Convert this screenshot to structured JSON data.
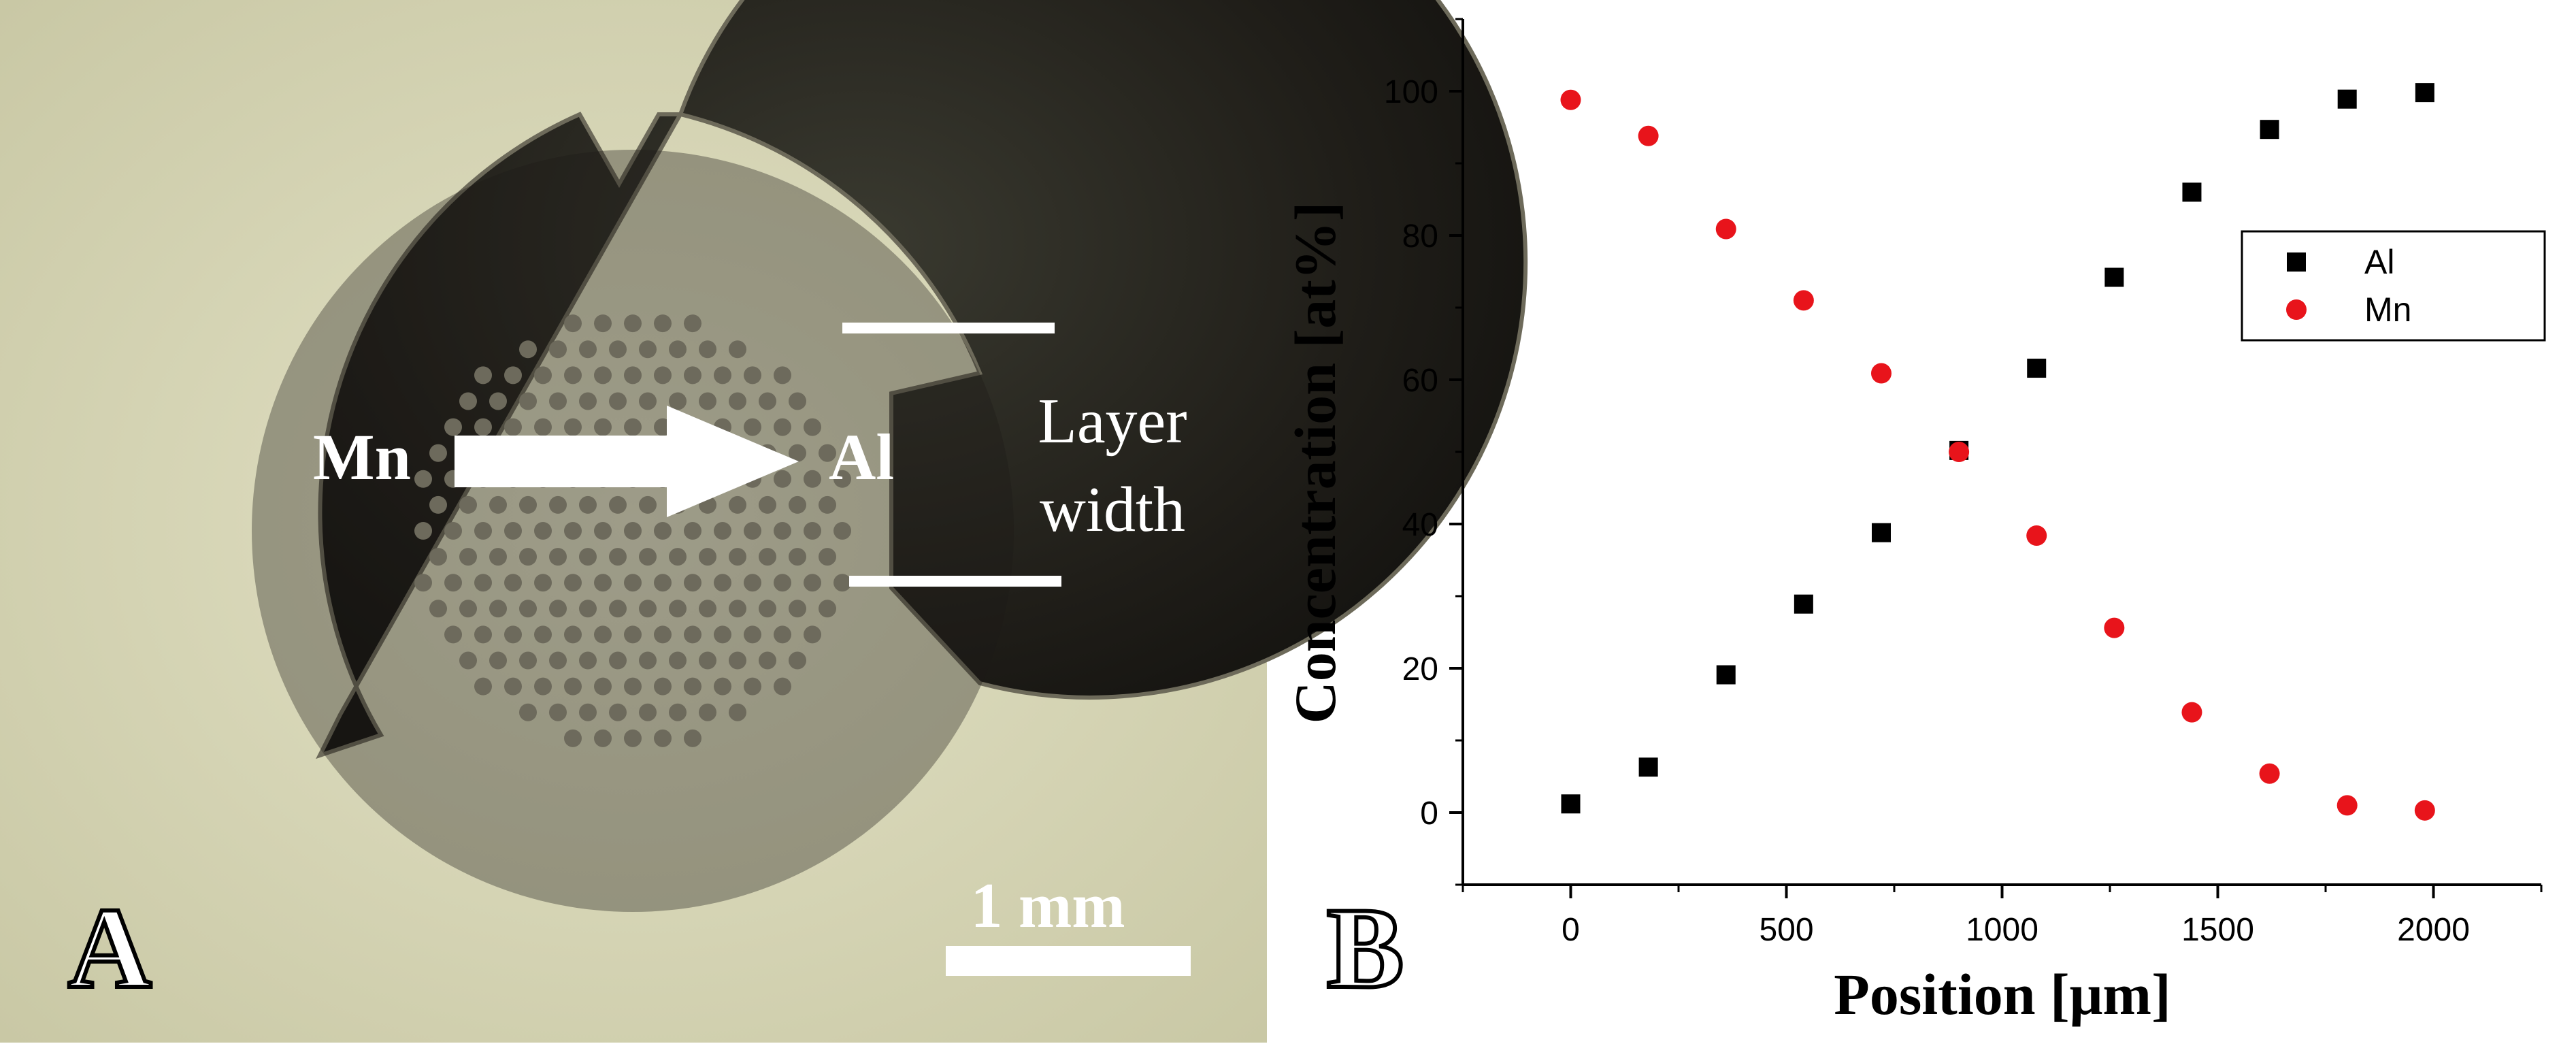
{
  "panel_a": {
    "letter": "A",
    "start_label": "Mn",
    "end_label": "Al",
    "width_label_line1": "Layer",
    "width_label_line2": "width",
    "scale_label": "1 mm"
  },
  "panel_b": {
    "letter": "B"
  },
  "chart_data": {
    "type": "scatter",
    "xlabel": "Position [μm]",
    "ylabel": "Concentration [at%]",
    "xlim": [
      -250,
      2250
    ],
    "ylim": [
      -10,
      110
    ],
    "xticks": [
      0,
      500,
      1000,
      1500,
      2000
    ],
    "yticks": [
      0,
      20,
      40,
      60,
      80,
      100
    ],
    "grid": false,
    "legend_position": "top-right",
    "series": [
      {
        "name": "Al",
        "marker": "square",
        "color": "#000000",
        "x": [
          0,
          180,
          360,
          540,
          720,
          900,
          1080,
          1260,
          1440,
          1620,
          1800,
          1980
        ],
        "y": [
          1.2,
          6.3,
          19.1,
          28.9,
          38.8,
          50.2,
          61.6,
          74.2,
          86.0,
          94.7,
          98.9,
          99.8
        ]
      },
      {
        "name": "Mn",
        "marker": "circle",
        "color": "#e8141b",
        "x": [
          0,
          180,
          360,
          540,
          720,
          900,
          1080,
          1260,
          1440,
          1620,
          1800,
          1980
        ],
        "y": [
          98.8,
          93.8,
          80.9,
          71.0,
          60.9,
          50.0,
          38.4,
          25.6,
          13.9,
          5.4,
          1.0,
          0.3
        ]
      }
    ]
  }
}
